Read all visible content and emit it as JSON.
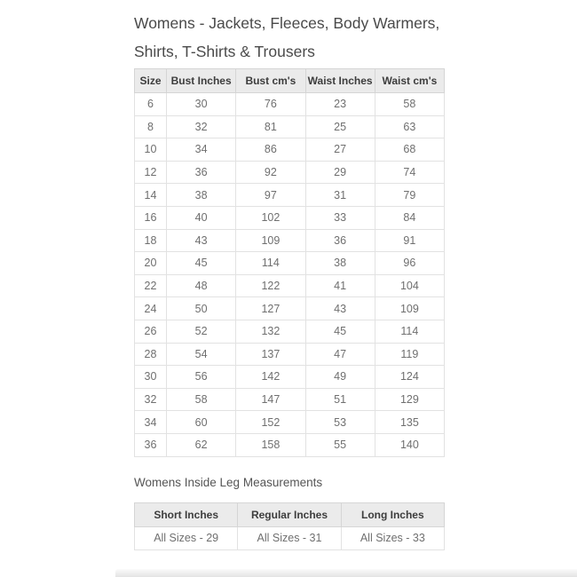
{
  "title": {
    "line1": "Womens - Jackets, Fleeces, Body Warmers,",
    "line2": "Shirts, T-Shirts & Trousers"
  },
  "size_table": {
    "headers": [
      "Size",
      "Bust Inches",
      "Bust cm's",
      "Waist Inches",
      "Waist cm's"
    ],
    "rows": [
      [
        "6",
        "30",
        "76",
        "23",
        "58"
      ],
      [
        "8",
        "32",
        "81",
        "25",
        "63"
      ],
      [
        "10",
        "34",
        "86",
        "27",
        "68"
      ],
      [
        "12",
        "36",
        "92",
        "29",
        "74"
      ],
      [
        "14",
        "38",
        "97",
        "31",
        "79"
      ],
      [
        "16",
        "40",
        "102",
        "33",
        "84"
      ],
      [
        "18",
        "43",
        "109",
        "36",
        "91"
      ],
      [
        "20",
        "45",
        "114",
        "38",
        "96"
      ],
      [
        "22",
        "48",
        "122",
        "41",
        "104"
      ],
      [
        "24",
        "50",
        "127",
        "43",
        "109"
      ],
      [
        "26",
        "52",
        "132",
        "45",
        "114"
      ],
      [
        "28",
        "54",
        "137",
        "47",
        "119"
      ],
      [
        "30",
        "56",
        "142",
        "49",
        "124"
      ],
      [
        "32",
        "58",
        "147",
        "51",
        "129"
      ],
      [
        "34",
        "60",
        "152",
        "53",
        "135"
      ],
      [
        "36",
        "62",
        "158",
        "55",
        "140"
      ]
    ]
  },
  "inside_leg": {
    "heading": "Womens Inside Leg Measurements",
    "table": {
      "headers": [
        "Short Inches",
        "Regular Inches",
        "Long Inches"
      ],
      "rows": [
        [
          "All Sizes - 29",
          "All Sizes - 31",
          "All Sizes - 33"
        ]
      ]
    }
  },
  "colors": {
    "page_bg": "#ffffff",
    "title_text": "#4a4a4a",
    "heading_text": "#555555",
    "header_bg": "#ebebeb",
    "header_text": "#3d3d3d",
    "cell_text": "#6f6f6f",
    "table_border": "#d5d5d5",
    "row_border": "#e2e2e2",
    "bottom_bar": "#e3e3e3"
  }
}
